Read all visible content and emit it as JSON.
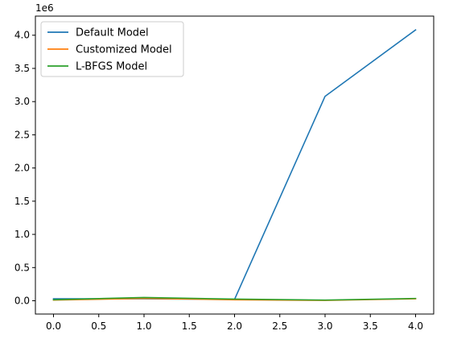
{
  "chart_data": {
    "type": "line",
    "title": "",
    "xlabel": "",
    "ylabel": "",
    "y_offset_label": "1e6",
    "y_scale": 1000000,
    "xlim": [
      -0.2,
      4.2
    ],
    "ylim": [
      -200000,
      4288000
    ],
    "xticks": [
      0.0,
      0.5,
      1.0,
      1.5,
      2.0,
      2.5,
      3.0,
      3.5,
      4.0
    ],
    "xtick_labels": [
      "0.0",
      "0.5",
      "1.0",
      "1.5",
      "2.0",
      "2.5",
      "3.0",
      "3.5",
      "4.0"
    ],
    "yticks": [
      0,
      500000,
      1000000,
      1500000,
      2000000,
      2500000,
      3000000,
      3500000,
      4000000
    ],
    "ytick_labels": [
      "0.0",
      "0.5",
      "1.0",
      "1.5",
      "2.0",
      "2.5",
      "3.0",
      "3.5",
      "4.0"
    ],
    "grid": false,
    "legend_position": "top-left",
    "x": [
      0,
      1,
      2,
      3,
      4
    ],
    "series": [
      {
        "name": "Default Model",
        "color": "#1f77b4",
        "values": [
          30000,
          30000,
          20000,
          3080000,
          4080000
        ]
      },
      {
        "name": "Customized Model",
        "color": "#ff7f0e",
        "values": [
          10000,
          35000,
          15000,
          5000,
          30000
        ]
      },
      {
        "name": "L-BFGS Model",
        "color": "#2ca02c",
        "values": [
          15000,
          50000,
          25000,
          10000,
          35000
        ]
      }
    ]
  }
}
